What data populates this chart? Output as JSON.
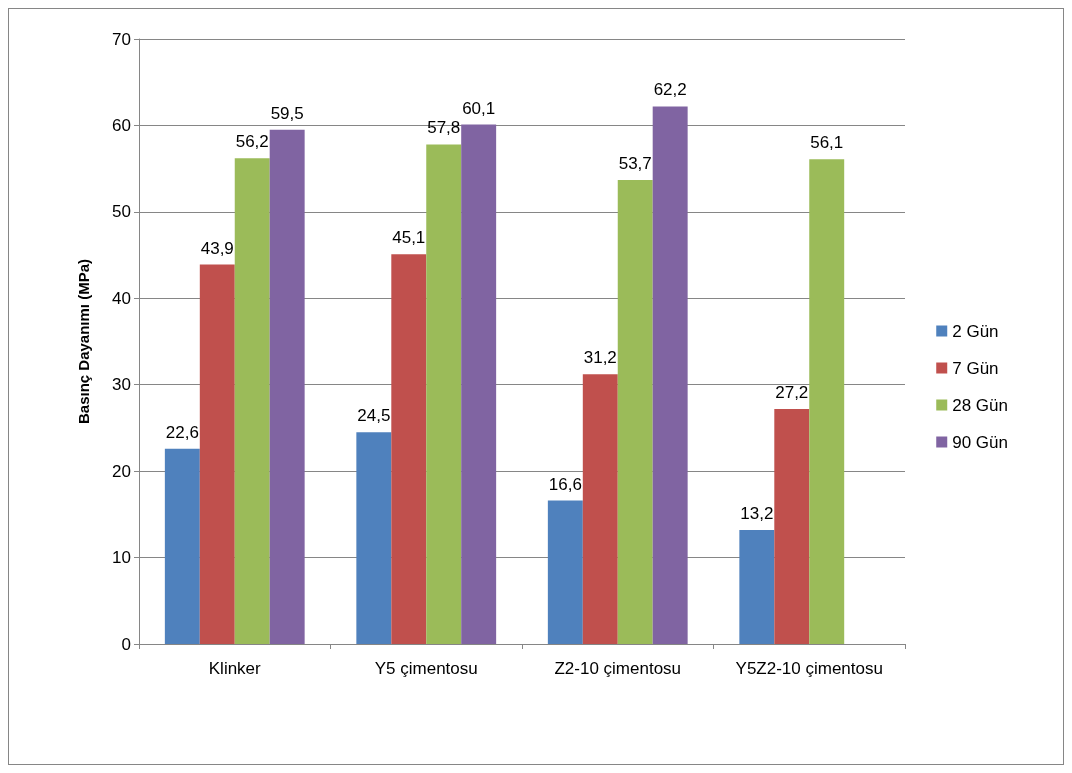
{
  "chart_data": {
    "type": "bar",
    "ylabel": "Basınç Dayanımı (MPa)",
    "categories": [
      "Klinker",
      "Y5 çimentosu",
      "Z2-10 çimentosu",
      "Y5Z2-10 çimentosu"
    ],
    "series": [
      {
        "name": "2 Gün",
        "color": "#4f81bd",
        "values": [
          22.6,
          24.5,
          16.6,
          13.2
        ],
        "value_labels": [
          "22,6",
          "24,5",
          "16,6",
          "13,2"
        ]
      },
      {
        "name": "7 Gün",
        "color": "#c0504d",
        "values": [
          43.9,
          45.1,
          31.2,
          27.2
        ],
        "value_labels": [
          "43,9",
          "45,1",
          "31,2",
          "27,2"
        ]
      },
      {
        "name": "28 Gün",
        "color": "#9bbb59",
        "values": [
          56.2,
          57.8,
          53.7,
          56.1
        ],
        "value_labels": [
          "56,2",
          "57,8",
          "53,7",
          "56,1"
        ]
      },
      {
        "name": "90 Gün",
        "color": "#8064a2",
        "values": [
          59.5,
          60.1,
          62.2,
          null
        ],
        "value_labels": [
          "59,5",
          "60,1",
          "62,2",
          null
        ]
      }
    ],
    "ylim": [
      0,
      70
    ],
    "yticks": [
      0,
      10,
      20,
      30,
      40,
      50,
      60,
      70
    ],
    "grid": "y",
    "legend": "right"
  }
}
